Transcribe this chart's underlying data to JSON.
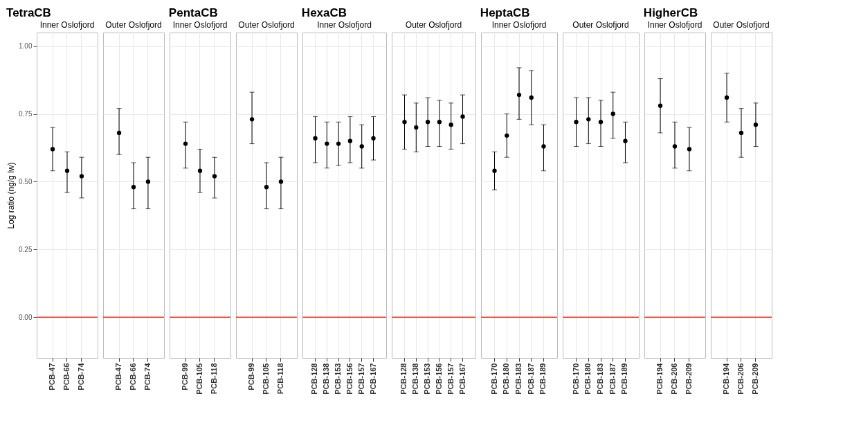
{
  "chart_data": [
    {
      "type": "scatter",
      "title": "TetraCB",
      "subtitle": "Inner Oslofjord",
      "ylabel": "Log ratio (ng/g lw)",
      "categories": [
        "PCB-47",
        "PCB-66",
        "PCB-74"
      ],
      "ylim": [
        -0.15,
        1.05
      ],
      "yticks": [
        {
          "value": 0,
          "label": "0.00"
        },
        {
          "value": 0.25,
          "label": "0.25"
        },
        {
          "value": 0.5,
          "label": "0.50"
        },
        {
          "value": 0.75,
          "label": "0.75"
        },
        {
          "value": 1,
          "label": "1.00"
        }
      ],
      "grid": true,
      "marker": "circle",
      "series": [
        {
          "color": "#000000",
          "values": [
            0.62,
            0.54,
            0.52
          ],
          "errors": [
            [
              0.54,
              0.7
            ],
            [
              0.46,
              0.61
            ],
            [
              0.44,
              0.59
            ]
          ]
        }
      ],
      "ref_lines": [
        {
          "axis": "y",
          "value": 0,
          "color": "#ff3b1f"
        }
      ]
    },
    {
      "type": "scatter",
      "subtitle": "Outer Oslofjord",
      "categories": [
        "PCB-47",
        "PCB-66",
        "PCB-74"
      ],
      "ylim": [
        -0.15,
        1.05
      ],
      "yticks": [
        {
          "value": 0,
          "label": null
        },
        {
          "value": 0.25,
          "label": null
        },
        {
          "value": 0.5,
          "label": null
        },
        {
          "value": 0.75,
          "label": null
        },
        {
          "value": 1,
          "label": null
        }
      ],
      "tick_labels": "x",
      "grid": true,
      "marker": "circle",
      "series": [
        {
          "color": "#000000",
          "values": [
            0.68,
            0.48,
            0.5
          ],
          "errors": [
            [
              0.6,
              0.77
            ],
            [
              0.4,
              0.57
            ],
            [
              0.4,
              0.59
            ]
          ]
        }
      ],
      "ref_lines": [
        {
          "axis": "y",
          "value": 0,
          "color": "#ff3b1f"
        }
      ]
    },
    {
      "type": "scatter",
      "title": "PentaCB",
      "subtitle": "Inner Oslofjord",
      "categories": [
        "PCB-99",
        "PCB-105",
        "PCB-118"
      ],
      "ylim": [
        -0.15,
        1.05
      ],
      "yticks": [
        {
          "value": 0,
          "label": null
        },
        {
          "value": 0.25,
          "label": null
        },
        {
          "value": 0.5,
          "label": null
        },
        {
          "value": 0.75,
          "label": null
        },
        {
          "value": 1,
          "label": null
        }
      ],
      "tick_labels": "x",
      "grid": true,
      "marker": "circle",
      "series": [
        {
          "color": "#000000",
          "values": [
            0.64,
            0.54,
            0.52
          ],
          "errors": [
            [
              0.55,
              0.72
            ],
            [
              0.46,
              0.62
            ],
            [
              0.44,
              0.59
            ]
          ]
        }
      ],
      "ref_lines": [
        {
          "axis": "y",
          "value": 0,
          "color": "#ff3b1f"
        }
      ]
    },
    {
      "type": "scatter",
      "subtitle": "Outer Oslofjord",
      "categories": [
        "PCB-99",
        "PCB-105",
        "PCB-118"
      ],
      "ylim": [
        -0.15,
        1.05
      ],
      "yticks": [
        {
          "value": 0,
          "label": null
        },
        {
          "value": 0.25,
          "label": null
        },
        {
          "value": 0.5,
          "label": null
        },
        {
          "value": 0.75,
          "label": null
        },
        {
          "value": 1,
          "label": null
        }
      ],
      "tick_labels": "x",
      "grid": true,
      "marker": "circle",
      "series": [
        {
          "color": "#000000",
          "values": [
            0.73,
            0.48,
            0.5
          ],
          "errors": [
            [
              0.64,
              0.83
            ],
            [
              0.4,
              0.57
            ],
            [
              0.4,
              0.59
            ]
          ]
        }
      ],
      "ref_lines": [
        {
          "axis": "y",
          "value": 0,
          "color": "#ff3b1f"
        }
      ]
    },
    {
      "type": "scatter",
      "title": "HexaCB",
      "subtitle": "Inner Oslofjord",
      "categories": [
        "PCB-128",
        "PCB-138",
        "PCB-153",
        "PCB-156",
        "PCB-157",
        "PCB-167"
      ],
      "ylim": [
        -0.15,
        1.05
      ],
      "yticks": [
        {
          "value": 0,
          "label": null
        },
        {
          "value": 0.25,
          "label": null
        },
        {
          "value": 0.5,
          "label": null
        },
        {
          "value": 0.75,
          "label": null
        },
        {
          "value": 1,
          "label": null
        }
      ],
      "tick_labels": "x",
      "grid": true,
      "marker": "circle",
      "series": [
        {
          "color": "#000000",
          "values": [
            0.66,
            0.64,
            0.64,
            0.65,
            0.63,
            0.66
          ],
          "errors": [
            [
              0.57,
              0.74
            ],
            [
              0.55,
              0.72
            ],
            [
              0.56,
              0.72
            ],
            [
              0.57,
              0.74
            ],
            [
              0.55,
              0.71
            ],
            [
              0.58,
              0.74
            ]
          ]
        }
      ],
      "ref_lines": [
        {
          "axis": "y",
          "value": 0,
          "color": "#ff3b1f"
        }
      ]
    },
    {
      "type": "scatter",
      "subtitle": "Outer Oslofjord",
      "categories": [
        "PCB-128",
        "PCB-138",
        "PCB-153",
        "PCB-156",
        "PCB-157",
        "PCB-167"
      ],
      "ylim": [
        -0.15,
        1.05
      ],
      "yticks": [
        {
          "value": 0,
          "label": null
        },
        {
          "value": 0.25,
          "label": null
        },
        {
          "value": 0.5,
          "label": null
        },
        {
          "value": 0.75,
          "label": null
        },
        {
          "value": 1,
          "label": null
        }
      ],
      "tick_labels": "x",
      "grid": true,
      "marker": "circle",
      "series": [
        {
          "color": "#000000",
          "values": [
            0.72,
            0.7,
            0.72,
            0.72,
            0.71,
            0.74
          ],
          "errors": [
            [
              0.62,
              0.82
            ],
            [
              0.61,
              0.79
            ],
            [
              0.63,
              0.81
            ],
            [
              0.63,
              0.8
            ],
            [
              0.62,
              0.79
            ],
            [
              0.64,
              0.82
            ]
          ]
        }
      ],
      "ref_lines": [
        {
          "axis": "y",
          "value": 0,
          "color": "#ff3b1f"
        }
      ]
    },
    {
      "type": "scatter",
      "title": "HeptaCB",
      "subtitle": "Inner Oslofjord",
      "categories": [
        "PCB-170",
        "PCB-180",
        "PCB-183",
        "PCB-187",
        "PCB-189"
      ],
      "ylim": [
        -0.15,
        1.05
      ],
      "yticks": [
        {
          "value": 0,
          "label": null
        },
        {
          "value": 0.25,
          "label": null
        },
        {
          "value": 0.5,
          "label": null
        },
        {
          "value": 0.75,
          "label": null
        },
        {
          "value": 1,
          "label": null
        }
      ],
      "tick_labels": "x",
      "grid": true,
      "marker": "circle",
      "series": [
        {
          "color": "#000000",
          "values": [
            0.54,
            0.67,
            0.82,
            0.81,
            0.63
          ],
          "errors": [
            [
              0.47,
              0.61
            ],
            [
              0.59,
              0.75
            ],
            [
              0.73,
              0.92
            ],
            [
              0.71,
              0.91
            ],
            [
              0.54,
              0.71
            ]
          ]
        }
      ],
      "ref_lines": [
        {
          "axis": "y",
          "value": 0,
          "color": "#ff3b1f"
        }
      ]
    },
    {
      "type": "scatter",
      "subtitle": "Outer Oslofjord",
      "categories": [
        "PCB-170",
        "PCB-180",
        "PCB-183",
        "PCB-187",
        "PCB-189"
      ],
      "ylim": [
        -0.15,
        1.05
      ],
      "yticks": [
        {
          "value": 0,
          "label": null
        },
        {
          "value": 0.25,
          "label": null
        },
        {
          "value": 0.5,
          "label": null
        },
        {
          "value": 0.75,
          "label": null
        },
        {
          "value": 1,
          "label": null
        }
      ],
      "tick_labels": "x",
      "grid": true,
      "marker": "circle",
      "series": [
        {
          "color": "#000000",
          "values": [
            0.72,
            0.73,
            0.72,
            0.75,
            0.65
          ],
          "errors": [
            [
              0.63,
              0.81
            ],
            [
              0.64,
              0.81
            ],
            [
              0.63,
              0.8
            ],
            [
              0.66,
              0.83
            ],
            [
              0.57,
              0.72
            ]
          ]
        }
      ],
      "ref_lines": [
        {
          "axis": "y",
          "value": 0,
          "color": "#ff3b1f"
        }
      ]
    },
    {
      "type": "scatter",
      "title": "HigherCB",
      "subtitle": "Inner Oslofjord",
      "categories": [
        "PCB-194",
        "PCB-206",
        "PCB-209"
      ],
      "ylim": [
        -0.15,
        1.05
      ],
      "yticks": [
        {
          "value": 0,
          "label": null
        },
        {
          "value": 0.25,
          "label": null
        },
        {
          "value": 0.5,
          "label": null
        },
        {
          "value": 0.75,
          "label": null
        },
        {
          "value": 1,
          "label": null
        }
      ],
      "tick_labels": "x",
      "grid": true,
      "marker": "circle",
      "series": [
        {
          "color": "#000000",
          "values": [
            0.78,
            0.63,
            0.62
          ],
          "errors": [
            [
              0.68,
              0.88
            ],
            [
              0.55,
              0.72
            ],
            [
              0.54,
              0.7
            ]
          ]
        }
      ],
      "ref_lines": [
        {
          "axis": "y",
          "value": 0,
          "color": "#ff3b1f"
        }
      ]
    },
    {
      "type": "scatter",
      "subtitle": "Outer Oslofjord",
      "categories": [
        "PCB-194",
        "PCB-206",
        "PCB-209"
      ],
      "ylim": [
        -0.15,
        1.05
      ],
      "yticks": [
        {
          "value": 0,
          "label": null
        },
        {
          "value": 0.25,
          "label": null
        },
        {
          "value": 0.5,
          "label": null
        },
        {
          "value": 0.75,
          "label": null
        },
        {
          "value": 1,
          "label": null
        }
      ],
      "tick_labels": "x",
      "grid": true,
      "marker": "circle",
      "series": [
        {
          "color": "#000000",
          "values": [
            0.81,
            0.68,
            0.71
          ],
          "errors": [
            [
              0.72,
              0.9
            ],
            [
              0.59,
              0.77
            ],
            [
              0.63,
              0.79
            ]
          ]
        }
      ],
      "ref_lines": [
        {
          "axis": "y",
          "value": 0,
          "color": "#ff3b1f"
        }
      ]
    }
  ]
}
